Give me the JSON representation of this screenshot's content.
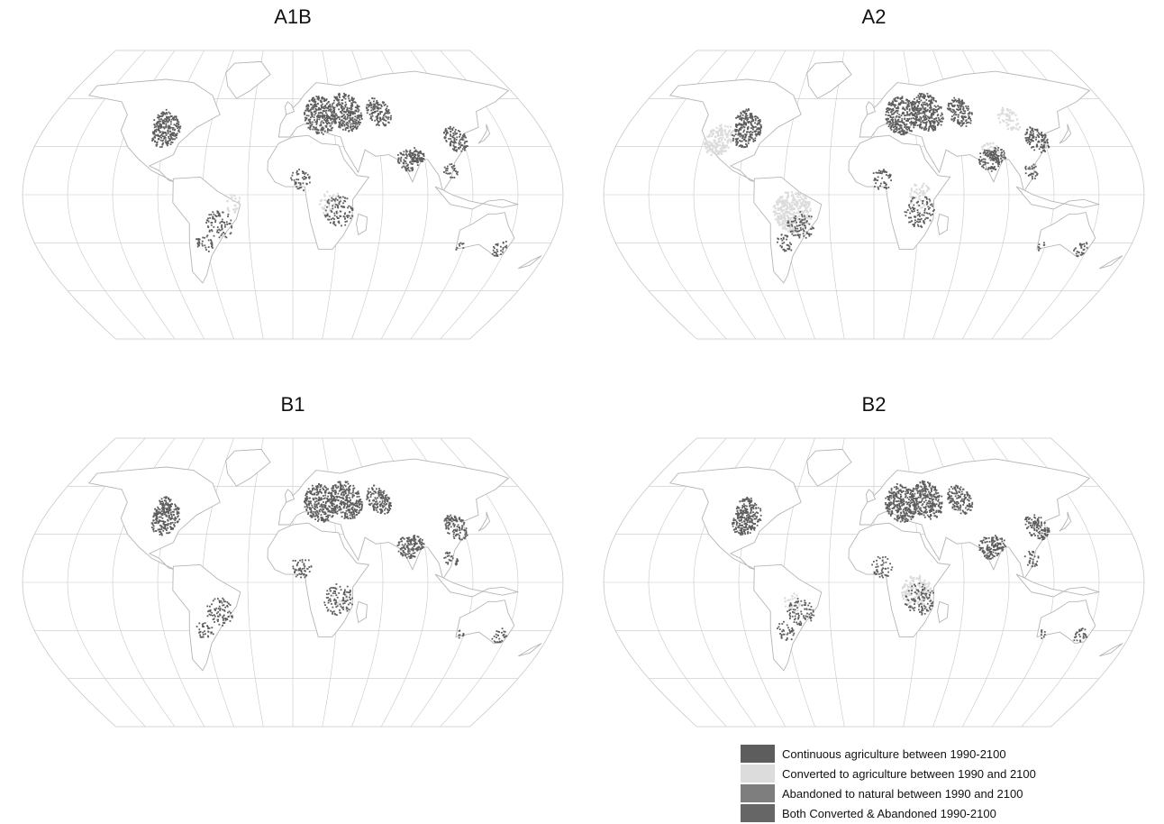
{
  "panels": [
    {
      "id": "a1b",
      "title": "A1B"
    },
    {
      "id": "a2",
      "title": "A2"
    },
    {
      "id": "b1",
      "title": "B1"
    },
    {
      "id": "b2",
      "title": "B2"
    }
  ],
  "legend": {
    "items": [
      {
        "label": "Continuous agriculture between 1990-2100",
        "color": "#5d5d5d"
      },
      {
        "label": "Converted to agriculture between 1990 and 2100",
        "color": "#dcdcdc"
      },
      {
        "label": "Abandoned to natural between 1990 and 2100",
        "color": "#7e7e7e"
      },
      {
        "label": "Both Converted & Abandoned 1990-2100",
        "color": "#666666"
      }
    ]
  },
  "colors": {
    "graticule": "#c8c8c8",
    "coastline": "#b5b5b5",
    "continuous": "#5d5d5d",
    "converted": "#dcdcdc"
  }
}
